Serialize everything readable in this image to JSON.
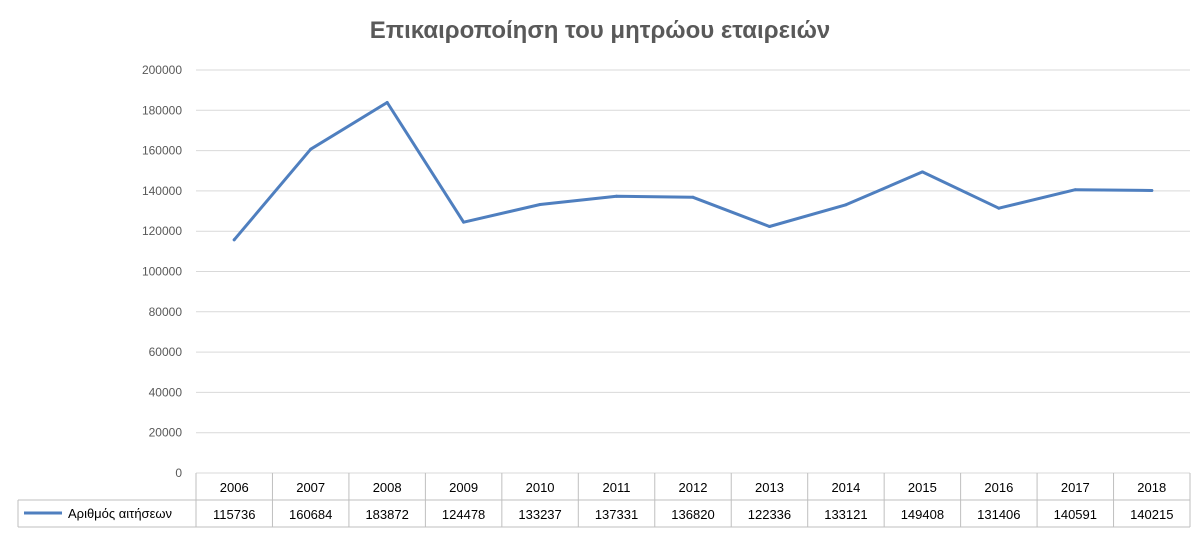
{
  "chart_data": {
    "type": "line",
    "title": "Επικαιροποίηση του μητρώου εταιρειών",
    "categories": [
      "2006",
      "2007",
      "2008",
      "2009",
      "2010",
      "2011",
      "2012",
      "2013",
      "2014",
      "2015",
      "2016",
      "2017",
      "2018"
    ],
    "series": [
      {
        "name": "Αριθμός αιτήσεων",
        "values": [
          115736,
          160684,
          183872,
          124478,
          133237,
          137331,
          136820,
          122336,
          133121,
          149408,
          131406,
          140591,
          140215
        ],
        "color": "#4f7fbf"
      }
    ],
    "ylim": [
      0,
      200000
    ],
    "yticks": [
      "200000",
      "180000",
      "160000",
      "140000",
      "120000",
      "100000",
      "80000",
      "60000",
      "40000",
      "20000",
      "0"
    ],
    "grid": true,
    "data_table": true,
    "legend_placement": "data-table-left"
  }
}
